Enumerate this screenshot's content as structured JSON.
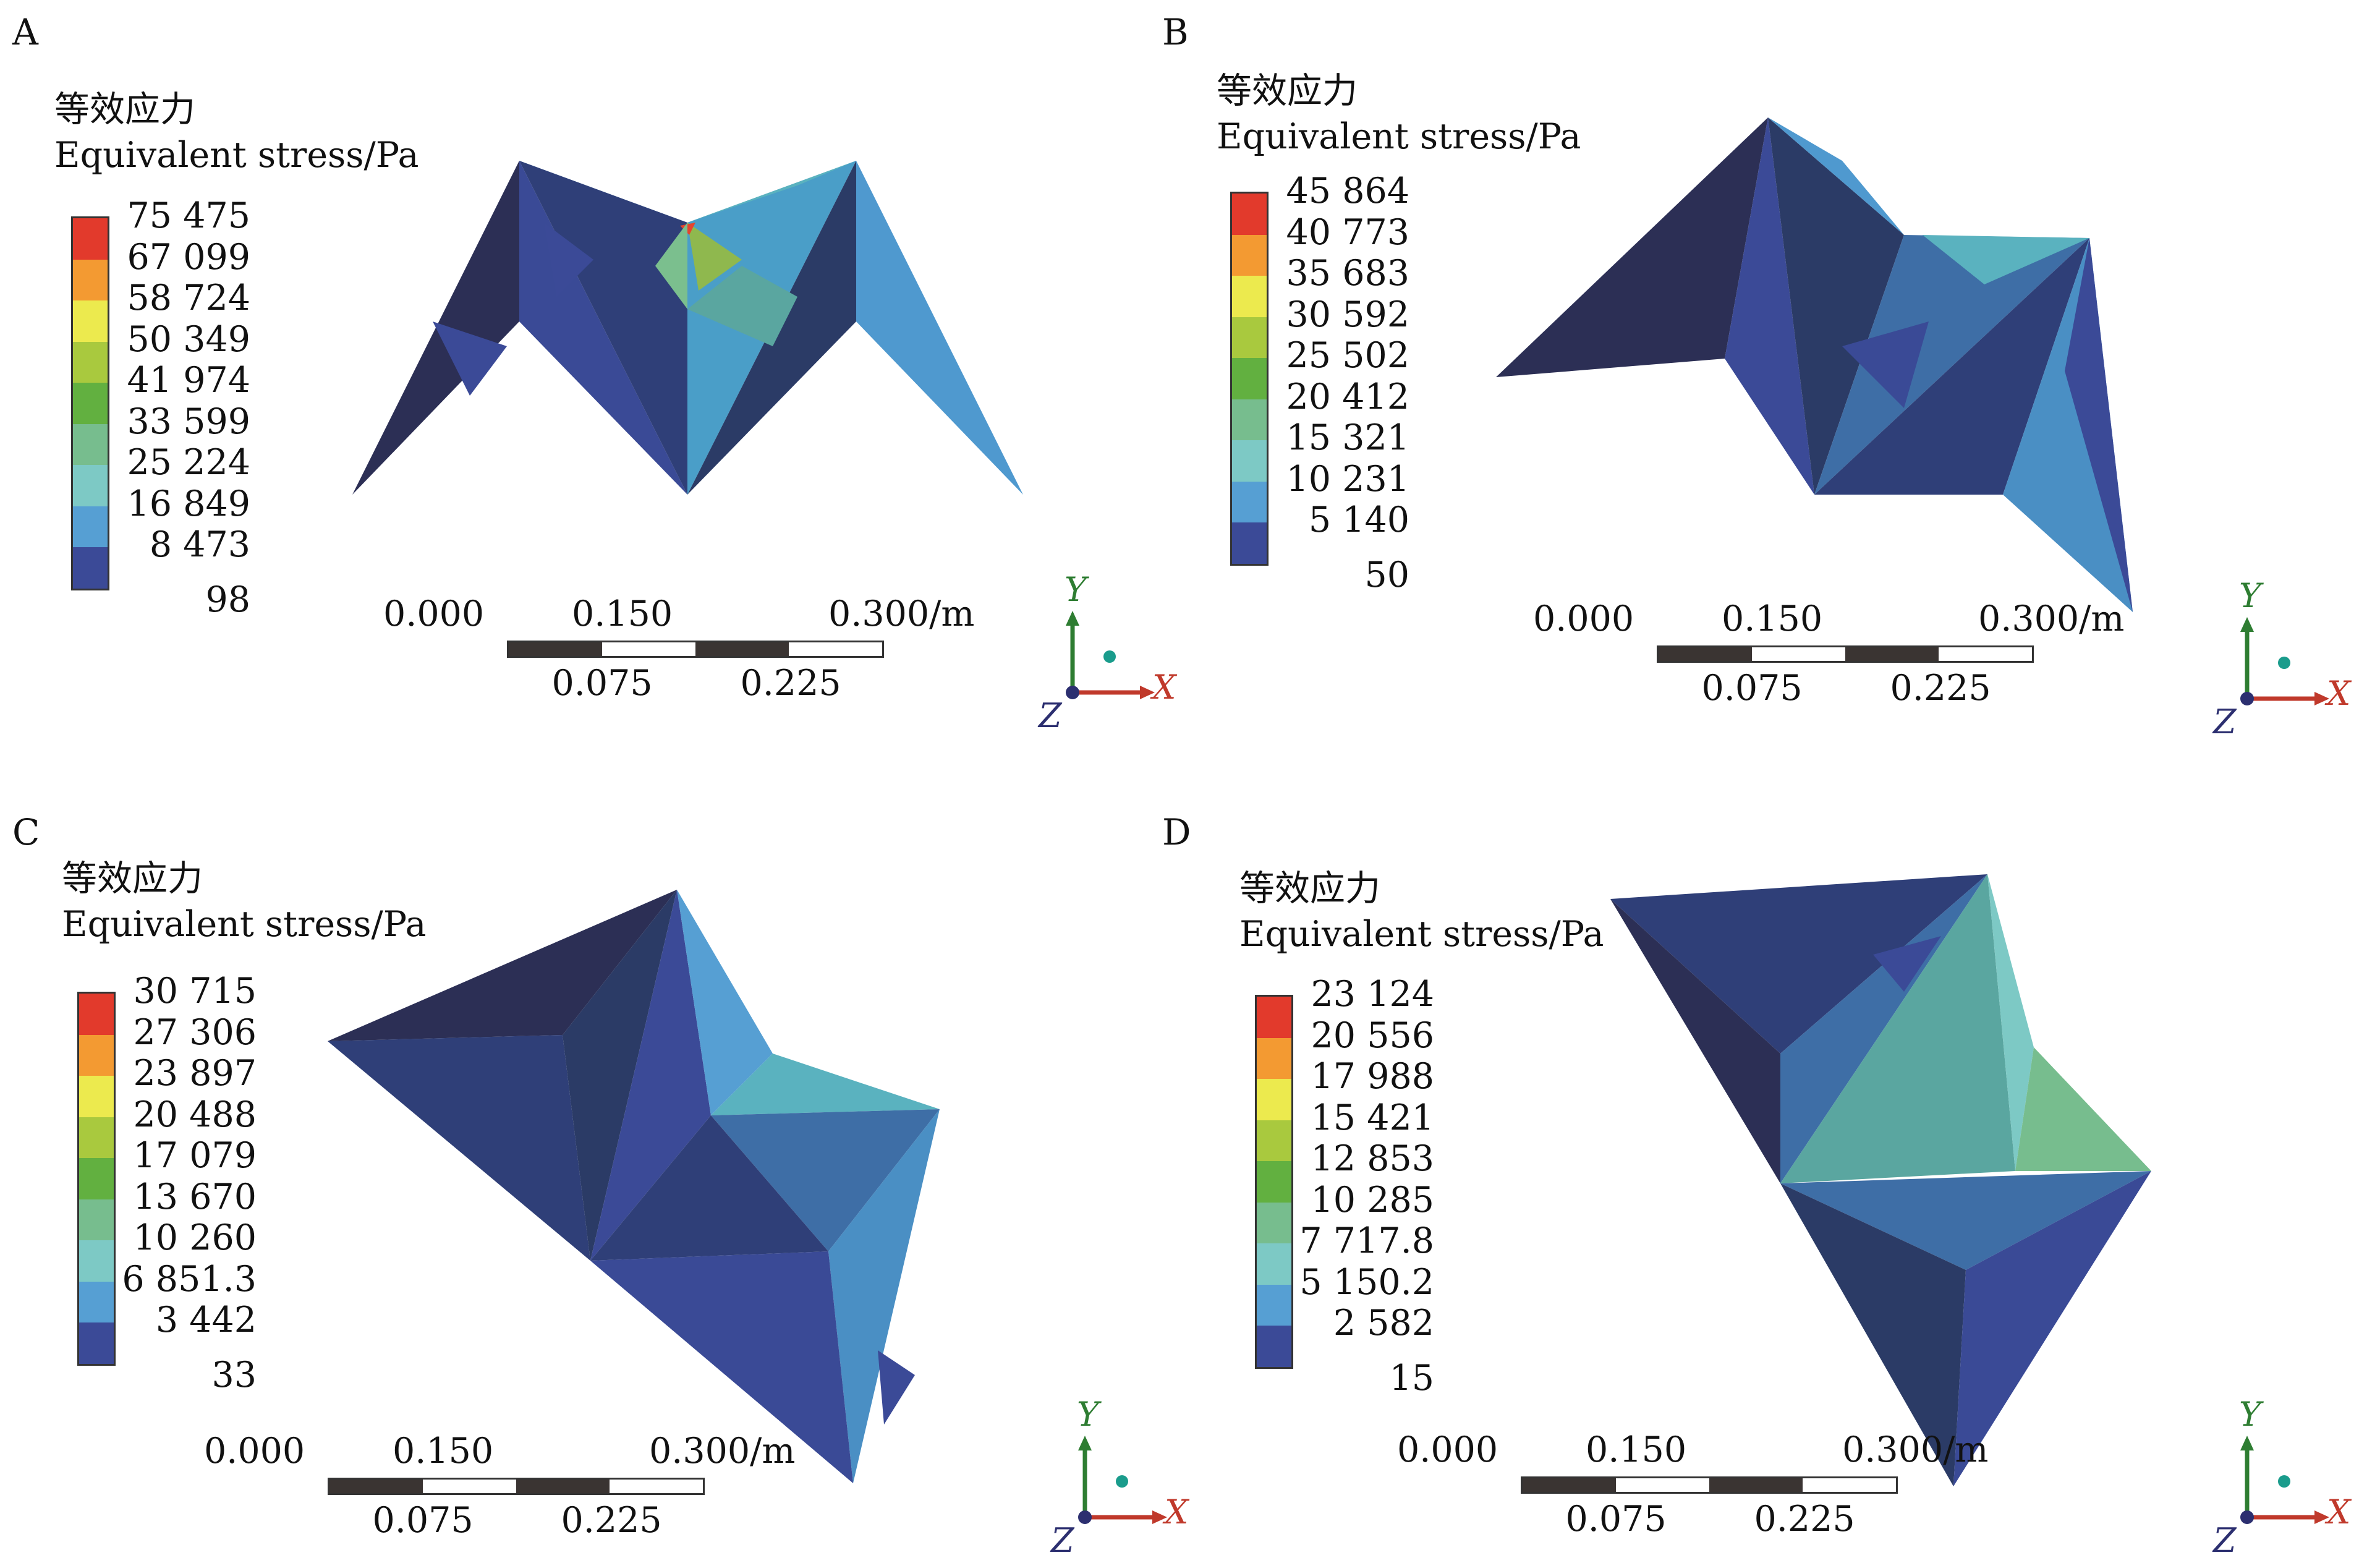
{
  "legend_title_cn": "等效应力",
  "legend_title_en": "Equivalent stress/Pa",
  "colors": [
    "#e23a2c",
    "#f39a32",
    "#ecea4e",
    "#a9c93e",
    "#62b040",
    "#77bd8e",
    "#7dc9c5",
    "#569fd3",
    "#3b4a97"
  ],
  "scale_bar": {
    "top_labels": [
      "0.000",
      "0.150",
      "0.300/m"
    ],
    "bottom_labels": [
      "0.075",
      "0.225"
    ]
  },
  "axes": {
    "x": "X",
    "y": "Y",
    "z": "Z"
  },
  "panels": [
    {
      "letter": "A",
      "ticks": [
        "75 475",
        "67 099",
        "58 724",
        "50 349",
        "41 974",
        "33 599",
        "25 224",
        "16 849",
        "8 473",
        "98"
      ]
    },
    {
      "letter": "B",
      "ticks": [
        "45 864",
        "40 773",
        "35 683",
        "30 592",
        "25 502",
        "20 412",
        "15 321",
        "10 231",
        "5 140",
        "50"
      ]
    },
    {
      "letter": "C",
      "ticks": [
        "30 715",
        "27 306",
        "23 897",
        "20 488",
        "17 079",
        "13 670",
        "10 260",
        "6 851.3",
        "3 442",
        "33"
      ]
    },
    {
      "letter": "D",
      "ticks": [
        "23 124",
        "20 556",
        "17 988",
        "15 421",
        "12 853",
        "10 285",
        "7 717.8",
        "5 150.2",
        "2 582",
        "15"
      ]
    }
  ]
}
